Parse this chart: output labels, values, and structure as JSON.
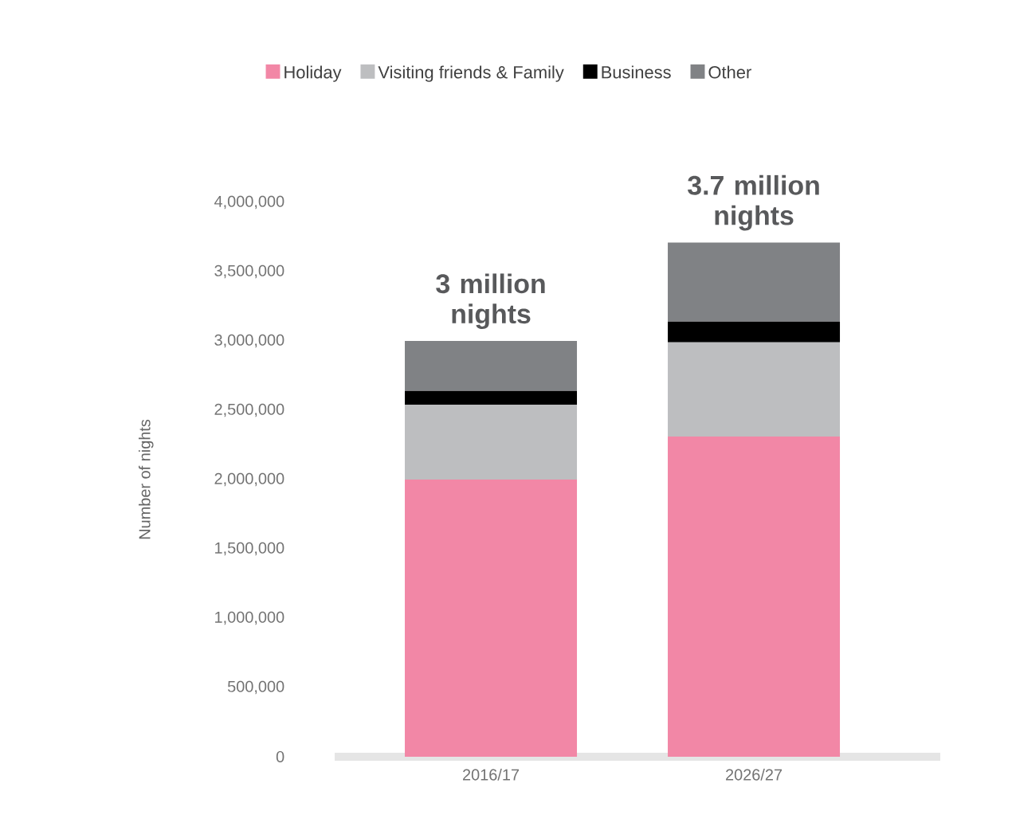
{
  "chart_data": {
    "type": "bar",
    "stacked": true,
    "ylabel": "Number of nights",
    "categories": [
      "2016/17",
      "2026/27"
    ],
    "series": [
      {
        "name": "Holiday",
        "color": "#f287a6",
        "values": [
          2000000,
          2310000
        ]
      },
      {
        "name": "Visiting friends & Family",
        "color": "#bdbec0",
        "values": [
          540000,
          680000
        ]
      },
      {
        "name": "Business",
        "color": "#000000",
        "values": [
          100000,
          150000
        ]
      },
      {
        "name": "Other",
        "color": "#808285",
        "values": [
          360000,
          570000
        ]
      }
    ],
    "ylim": [
      0,
      4000000
    ],
    "yticks": [
      {
        "value": 0,
        "label": "0"
      },
      {
        "value": 500000,
        "label": "500,000"
      },
      {
        "value": 1000000,
        "label": "1,000,000"
      },
      {
        "value": 1500000,
        "label": "1,500,000"
      },
      {
        "value": 2000000,
        "label": "2,000,000"
      },
      {
        "value": 2500000,
        "label": "2,500,000"
      },
      {
        "value": 3000000,
        "label": "3,000,000"
      },
      {
        "value": 3500000,
        "label": "3,500,000"
      },
      {
        "value": 4000000,
        "label": "4,000,000"
      }
    ],
    "totals": [
      "3 million nights",
      "3.7 million nights"
    ],
    "legend": "top"
  }
}
